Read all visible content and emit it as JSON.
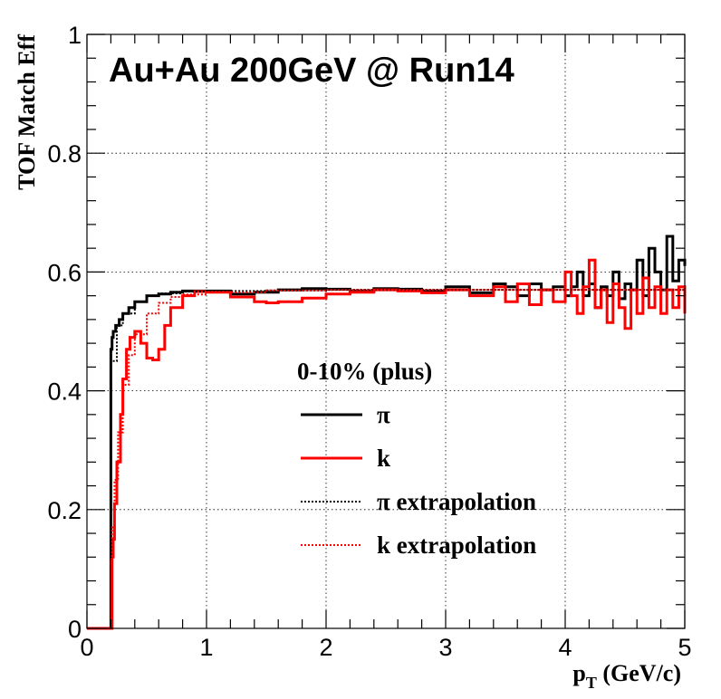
{
  "chart_data": {
    "type": "line",
    "title": "Au+Au 200GeV @ Run14",
    "xlabel_main": "p",
    "xlabel_sub": "T",
    "xlabel_unit": " (GeV/c)",
    "ylabel": "TOF Match Eff",
    "xlim": [
      0,
      5
    ],
    "ylim": [
      0,
      1
    ],
    "grid": true,
    "legend_title": "0-10% (plus)",
    "legend_placement": "center-right",
    "x_ticks": [
      {
        "value": 0,
        "label": "0"
      },
      {
        "value": 1,
        "label": "1"
      },
      {
        "value": 2,
        "label": "2"
      },
      {
        "value": 3,
        "label": "3"
      },
      {
        "value": 4,
        "label": "4"
      },
      {
        "value": 5,
        "label": "5"
      }
    ],
    "y_ticks": [
      {
        "value": 0,
        "label": "0"
      },
      {
        "value": 0.2,
        "label": "0.2"
      },
      {
        "value": 0.4,
        "label": "0.4"
      },
      {
        "value": 0.6,
        "label": "0.6"
      },
      {
        "value": 0.8,
        "label": "0.8"
      },
      {
        "value": 1,
        "label": "1"
      }
    ],
    "series": [
      {
        "name": "π",
        "color": "#000000",
        "style": "solid",
        "x": [
          0,
          0.19,
          0.2,
          0.21,
          0.22,
          0.24,
          0.27,
          0.3,
          0.35,
          0.4,
          0.5,
          0.6,
          0.7,
          0.8,
          1.0,
          1.2,
          1.4,
          1.6,
          1.8,
          2.0,
          2.2,
          2.4,
          2.6,
          2.8,
          3.0,
          3.2,
          3.4,
          3.5,
          3.6,
          3.7,
          3.8,
          3.9,
          4.0,
          4.05,
          4.1,
          4.15,
          4.2,
          4.25,
          4.3,
          4.35,
          4.4,
          4.45,
          4.5,
          4.55,
          4.6,
          4.65,
          4.7,
          4.75,
          4.8,
          4.85,
          4.9,
          4.95,
          5.0
        ],
        "y": [
          0,
          0,
          0.47,
          0.49,
          0.5,
          0.51,
          0.52,
          0.53,
          0.54,
          0.55,
          0.56,
          0.563,
          0.566,
          0.568,
          0.568,
          0.563,
          0.566,
          0.57,
          0.572,
          0.571,
          0.568,
          0.572,
          0.571,
          0.568,
          0.575,
          0.565,
          0.58,
          0.575,
          0.56,
          0.58,
          0.57,
          0.575,
          0.56,
          0.575,
          0.6,
          0.56,
          0.58,
          0.54,
          0.575,
          0.56,
          0.6,
          0.555,
          0.58,
          0.57,
          0.62,
          0.56,
          0.64,
          0.6,
          0.57,
          0.66,
          0.585,
          0.62,
          0.61
        ]
      },
      {
        "name": "k",
        "color": "#ff0000",
        "style": "solid",
        "x": [
          0,
          0.2,
          0.21,
          0.22,
          0.23,
          0.25,
          0.28,
          0.3,
          0.33,
          0.36,
          0.4,
          0.45,
          0.5,
          0.55,
          0.6,
          0.65,
          0.7,
          0.8,
          0.9,
          1.0,
          1.2,
          1.4,
          1.5,
          1.6,
          1.8,
          2.0,
          2.2,
          2.4,
          2.6,
          2.8,
          3.0,
          3.2,
          3.4,
          3.5,
          3.6,
          3.7,
          3.8,
          3.9,
          4.0,
          4.05,
          4.1,
          4.15,
          4.2,
          4.25,
          4.3,
          4.35,
          4.4,
          4.45,
          4.5,
          4.55,
          4.6,
          4.65,
          4.7,
          4.75,
          4.8,
          4.85,
          4.9,
          4.95,
          5.0
        ],
        "y": [
          0,
          0,
          0.12,
          0.15,
          0.21,
          0.28,
          0.36,
          0.42,
          0.47,
          0.49,
          0.5,
          0.48,
          0.455,
          0.452,
          0.47,
          0.51,
          0.54,
          0.56,
          0.567,
          0.566,
          0.558,
          0.55,
          0.548,
          0.55,
          0.556,
          0.563,
          0.566,
          0.57,
          0.568,
          0.565,
          0.57,
          0.56,
          0.575,
          0.55,
          0.58,
          0.545,
          0.57,
          0.55,
          0.6,
          0.56,
          0.53,
          0.575,
          0.62,
          0.54,
          0.57,
          0.515,
          0.58,
          0.54,
          0.505,
          0.57,
          0.53,
          0.59,
          0.54,
          0.575,
          0.53,
          0.57,
          0.54,
          0.575,
          0.53
        ]
      },
      {
        "name": "π extrapolation",
        "color": "#000000",
        "style": "dotted",
        "x": [
          0.19,
          0.2,
          0.25,
          0.3,
          0.4,
          0.5,
          0.6,
          0.8,
          1.0,
          1.5,
          2.0,
          3.0,
          4.0,
          5.0
        ],
        "y": [
          0.12,
          0.45,
          0.51,
          0.53,
          0.55,
          0.56,
          0.564,
          0.567,
          0.568,
          0.569,
          0.57,
          0.57,
          0.57,
          0.57
        ]
      },
      {
        "name": "k extrapolation",
        "color": "#ff0000",
        "style": "dotted",
        "x": [
          0.2,
          0.21,
          0.23,
          0.26,
          0.3,
          0.35,
          0.4,
          0.5,
          0.6,
          0.7,
          0.8,
          1.0,
          1.5,
          2.0,
          3.0,
          4.0,
          5.0
        ],
        "y": [
          0.11,
          0.17,
          0.25,
          0.33,
          0.41,
          0.46,
          0.495,
          0.53,
          0.548,
          0.558,
          0.562,
          0.566,
          0.569,
          0.57,
          0.57,
          0.57,
          0.57
        ]
      }
    ]
  }
}
